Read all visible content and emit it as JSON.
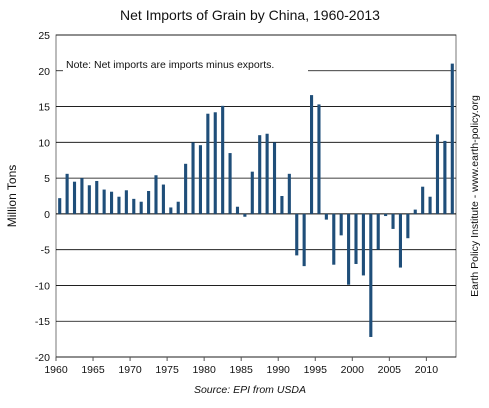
{
  "chart_data": {
    "type": "bar",
    "title": "Net Imports of Grain by China, 1960-2013",
    "ylabel": "Million Tons",
    "xlabel": "",
    "note": "Note: Net imports are imports minus exports.",
    "source": "Source: EPI from USDA",
    "credit": "Earth Policy Institute - www.earth-policy.org",
    "ylim": [
      -20,
      25
    ],
    "yticks": [
      "25",
      "20",
      "15",
      "10",
      "5",
      "0",
      "-5",
      "-10",
      "-15",
      "-20"
    ],
    "xticks": [
      "1960",
      "1965",
      "1970",
      "1975",
      "1980",
      "1985",
      "1990",
      "1995",
      "2000",
      "2005",
      "2010"
    ],
    "grid": true,
    "bar_color": "#1f4e79",
    "x": [
      1960,
      1961,
      1962,
      1963,
      1964,
      1965,
      1966,
      1967,
      1968,
      1969,
      1970,
      1971,
      1972,
      1973,
      1974,
      1975,
      1976,
      1977,
      1978,
      1979,
      1980,
      1981,
      1982,
      1983,
      1984,
      1985,
      1986,
      1987,
      1988,
      1989,
      1990,
      1991,
      1992,
      1993,
      1994,
      1995,
      1996,
      1997,
      1998,
      1999,
      2000,
      2001,
      2002,
      2003,
      2004,
      2005,
      2006,
      2007,
      2008,
      2009,
      2010,
      2011,
      2012,
      2013
    ],
    "values": [
      2.2,
      5.6,
      4.5,
      5.0,
      4.0,
      4.6,
      3.4,
      3.1,
      2.4,
      3.3,
      2.1,
      1.7,
      3.2,
      5.4,
      4.1,
      0.9,
      1.7,
      7.0,
      10.0,
      9.6,
      14.0,
      14.2,
      15.1,
      8.5,
      1.0,
      -0.4,
      5.9,
      11.0,
      11.2,
      10.0,
      2.5,
      5.6,
      -5.8,
      -7.3,
      16.6,
      15.3,
      -0.8,
      -7.1,
      -3.0,
      -9.9,
      -7.0,
      -8.6,
      -17.2,
      -5.0,
      -0.3,
      -2.1,
      -7.5,
      -3.4,
      0.6,
      3.8,
      2.4,
      11.1,
      10.2,
      21.0
    ]
  }
}
